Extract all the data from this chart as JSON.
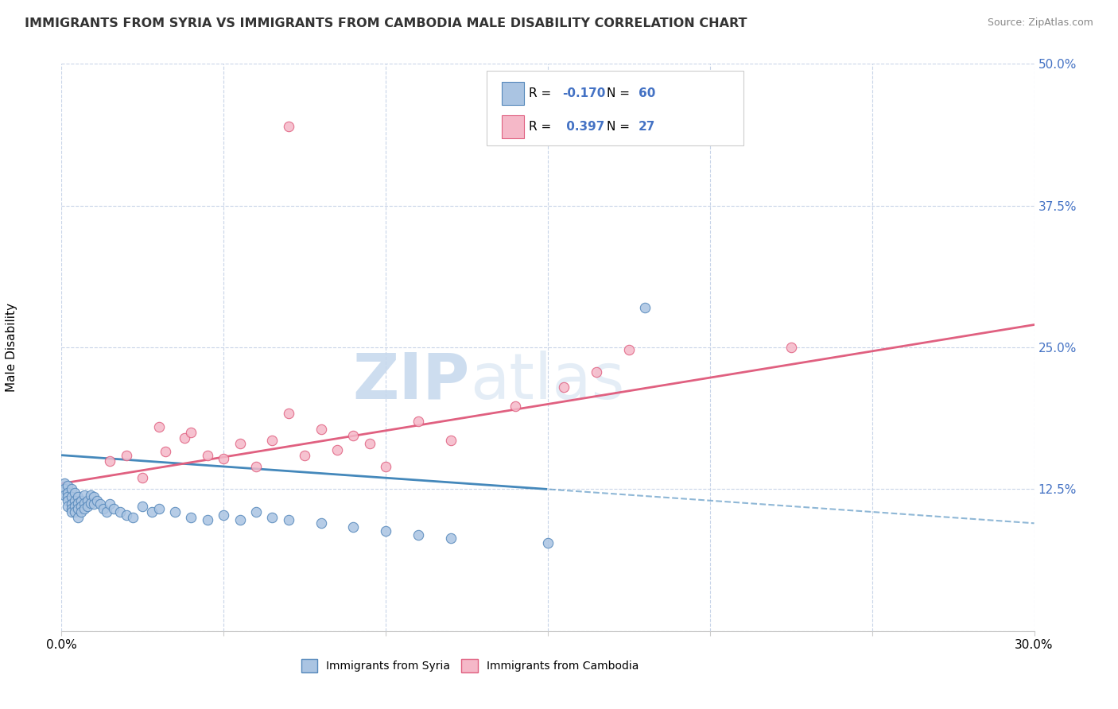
{
  "title": "IMMIGRANTS FROM SYRIA VS IMMIGRANTS FROM CAMBODIA MALE DISABILITY CORRELATION CHART",
  "source": "Source: ZipAtlas.com",
  "ylabel": "Male Disability",
  "xlim": [
    0.0,
    0.3
  ],
  "ylim": [
    0.0,
    0.5
  ],
  "xticks": [
    0.0,
    0.05,
    0.1,
    0.15,
    0.2,
    0.25,
    0.3
  ],
  "yticks": [
    0.0,
    0.125,
    0.25,
    0.375,
    0.5
  ],
  "syria_color": "#aac4e2",
  "syria_edge": "#5588bb",
  "cambodia_color": "#f5b8c8",
  "cambodia_edge": "#e06080",
  "syria_R": -0.17,
  "syria_N": 60,
  "cambodia_R": 0.397,
  "cambodia_N": 27,
  "syria_line_color": "#4488bb",
  "cambodia_line_color": "#e06080",
  "watermark_zip": "ZIP",
  "watermark_atlas": "atlas",
  "watermark_color_zip": "#c5d8ed",
  "watermark_color_atlas": "#c5d8ed",
  "legend_R_color": "#4472c4",
  "background_color": "#ffffff",
  "grid_color": "#c8d4e8",
  "syria_x": [
    0.001,
    0.001,
    0.001,
    0.002,
    0.002,
    0.002,
    0.002,
    0.002,
    0.003,
    0.003,
    0.003,
    0.003,
    0.003,
    0.004,
    0.004,
    0.004,
    0.004,
    0.005,
    0.005,
    0.005,
    0.005,
    0.006,
    0.006,
    0.006,
    0.007,
    0.007,
    0.007,
    0.008,
    0.008,
    0.009,
    0.009,
    0.01,
    0.01,
    0.011,
    0.012,
    0.013,
    0.014,
    0.015,
    0.016,
    0.018,
    0.02,
    0.022,
    0.025,
    0.028,
    0.03,
    0.035,
    0.04,
    0.045,
    0.05,
    0.055,
    0.06,
    0.065,
    0.07,
    0.08,
    0.09,
    0.1,
    0.11,
    0.12,
    0.15,
    0.18
  ],
  "syria_y": [
    0.13,
    0.125,
    0.12,
    0.128,
    0.122,
    0.118,
    0.115,
    0.11,
    0.125,
    0.118,
    0.112,
    0.108,
    0.105,
    0.122,
    0.115,
    0.11,
    0.105,
    0.118,
    0.113,
    0.108,
    0.1,
    0.115,
    0.11,
    0.105,
    0.12,
    0.113,
    0.108,
    0.115,
    0.11,
    0.12,
    0.113,
    0.118,
    0.112,
    0.115,
    0.112,
    0.108,
    0.105,
    0.112,
    0.108,
    0.105,
    0.102,
    0.1,
    0.11,
    0.105,
    0.108,
    0.105,
    0.1,
    0.098,
    0.102,
    0.098,
    0.105,
    0.1,
    0.098,
    0.095,
    0.092,
    0.088,
    0.085,
    0.082,
    0.078,
    0.285
  ],
  "cambodia_x": [
    0.015,
    0.02,
    0.025,
    0.03,
    0.032,
    0.038,
    0.04,
    0.045,
    0.05,
    0.055,
    0.06,
    0.065,
    0.07,
    0.075,
    0.08,
    0.085,
    0.09,
    0.095,
    0.1,
    0.11,
    0.12,
    0.14,
    0.155,
    0.165,
    0.175,
    0.225,
    0.07
  ],
  "cambodia_y": [
    0.15,
    0.155,
    0.135,
    0.18,
    0.158,
    0.17,
    0.175,
    0.155,
    0.152,
    0.165,
    0.145,
    0.168,
    0.192,
    0.155,
    0.178,
    0.16,
    0.172,
    0.165,
    0.145,
    0.185,
    0.168,
    0.198,
    0.215,
    0.228,
    0.248,
    0.25,
    0.445
  ]
}
